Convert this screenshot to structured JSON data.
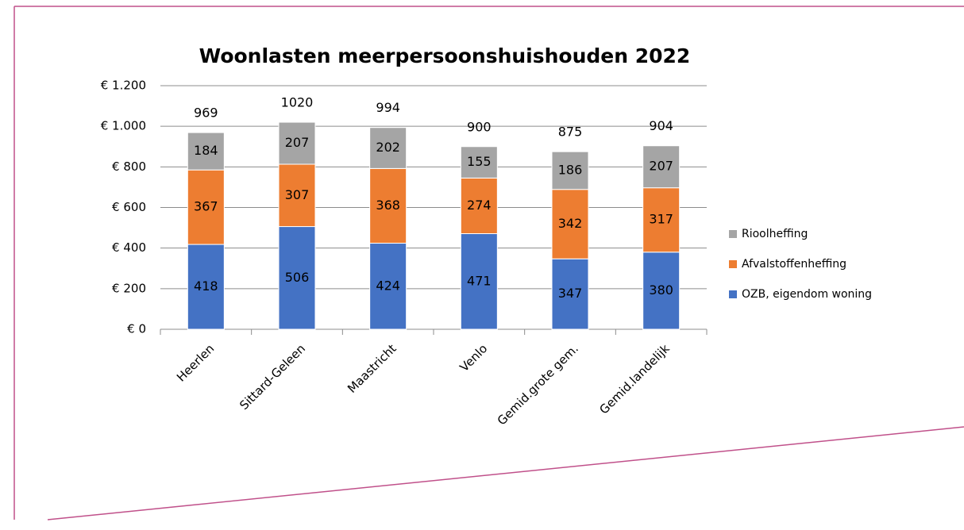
{
  "chart_data": {
    "type": "stacked_bar",
    "title": "Woonlasten meerpersoonshuishouden 2022",
    "categories": [
      "Heerlen",
      "Sittard-Geleen",
      "Maastricht",
      "Venlo",
      "Gemid.grote gem.",
      "Gemid.landelijk"
    ],
    "series": [
      {
        "name": "OZB, eigendom woning",
        "color": "#4472c4",
        "values": [
          418,
          506,
          424,
          471,
          347,
          380
        ]
      },
      {
        "name": "Afvalstoffenheffing",
        "color": "#ed7d31",
        "values": [
          367,
          307,
          368,
          274,
          342,
          317
        ]
      },
      {
        "name": "Rioolheffing",
        "color": "#a5a5a5",
        "values": [
          184,
          207,
          202,
          155,
          186,
          207
        ]
      }
    ],
    "totals": [
      969,
      1020,
      994,
      900,
      875,
      904
    ],
    "ylim": [
      0,
      1200
    ],
    "yticks": [
      {
        "value": 0,
        "label": "€ 0"
      },
      {
        "value": 200,
        "label": "€ 200"
      },
      {
        "value": 400,
        "label": "€ 400"
      },
      {
        "value": 600,
        "label": "€ 600"
      },
      {
        "value": 800,
        "label": "€ 800"
      },
      {
        "value": 1000,
        "label": "€ 1.000"
      },
      {
        "value": 1200,
        "label": "€ 1.200"
      }
    ],
    "grid": true,
    "legend": "right"
  }
}
